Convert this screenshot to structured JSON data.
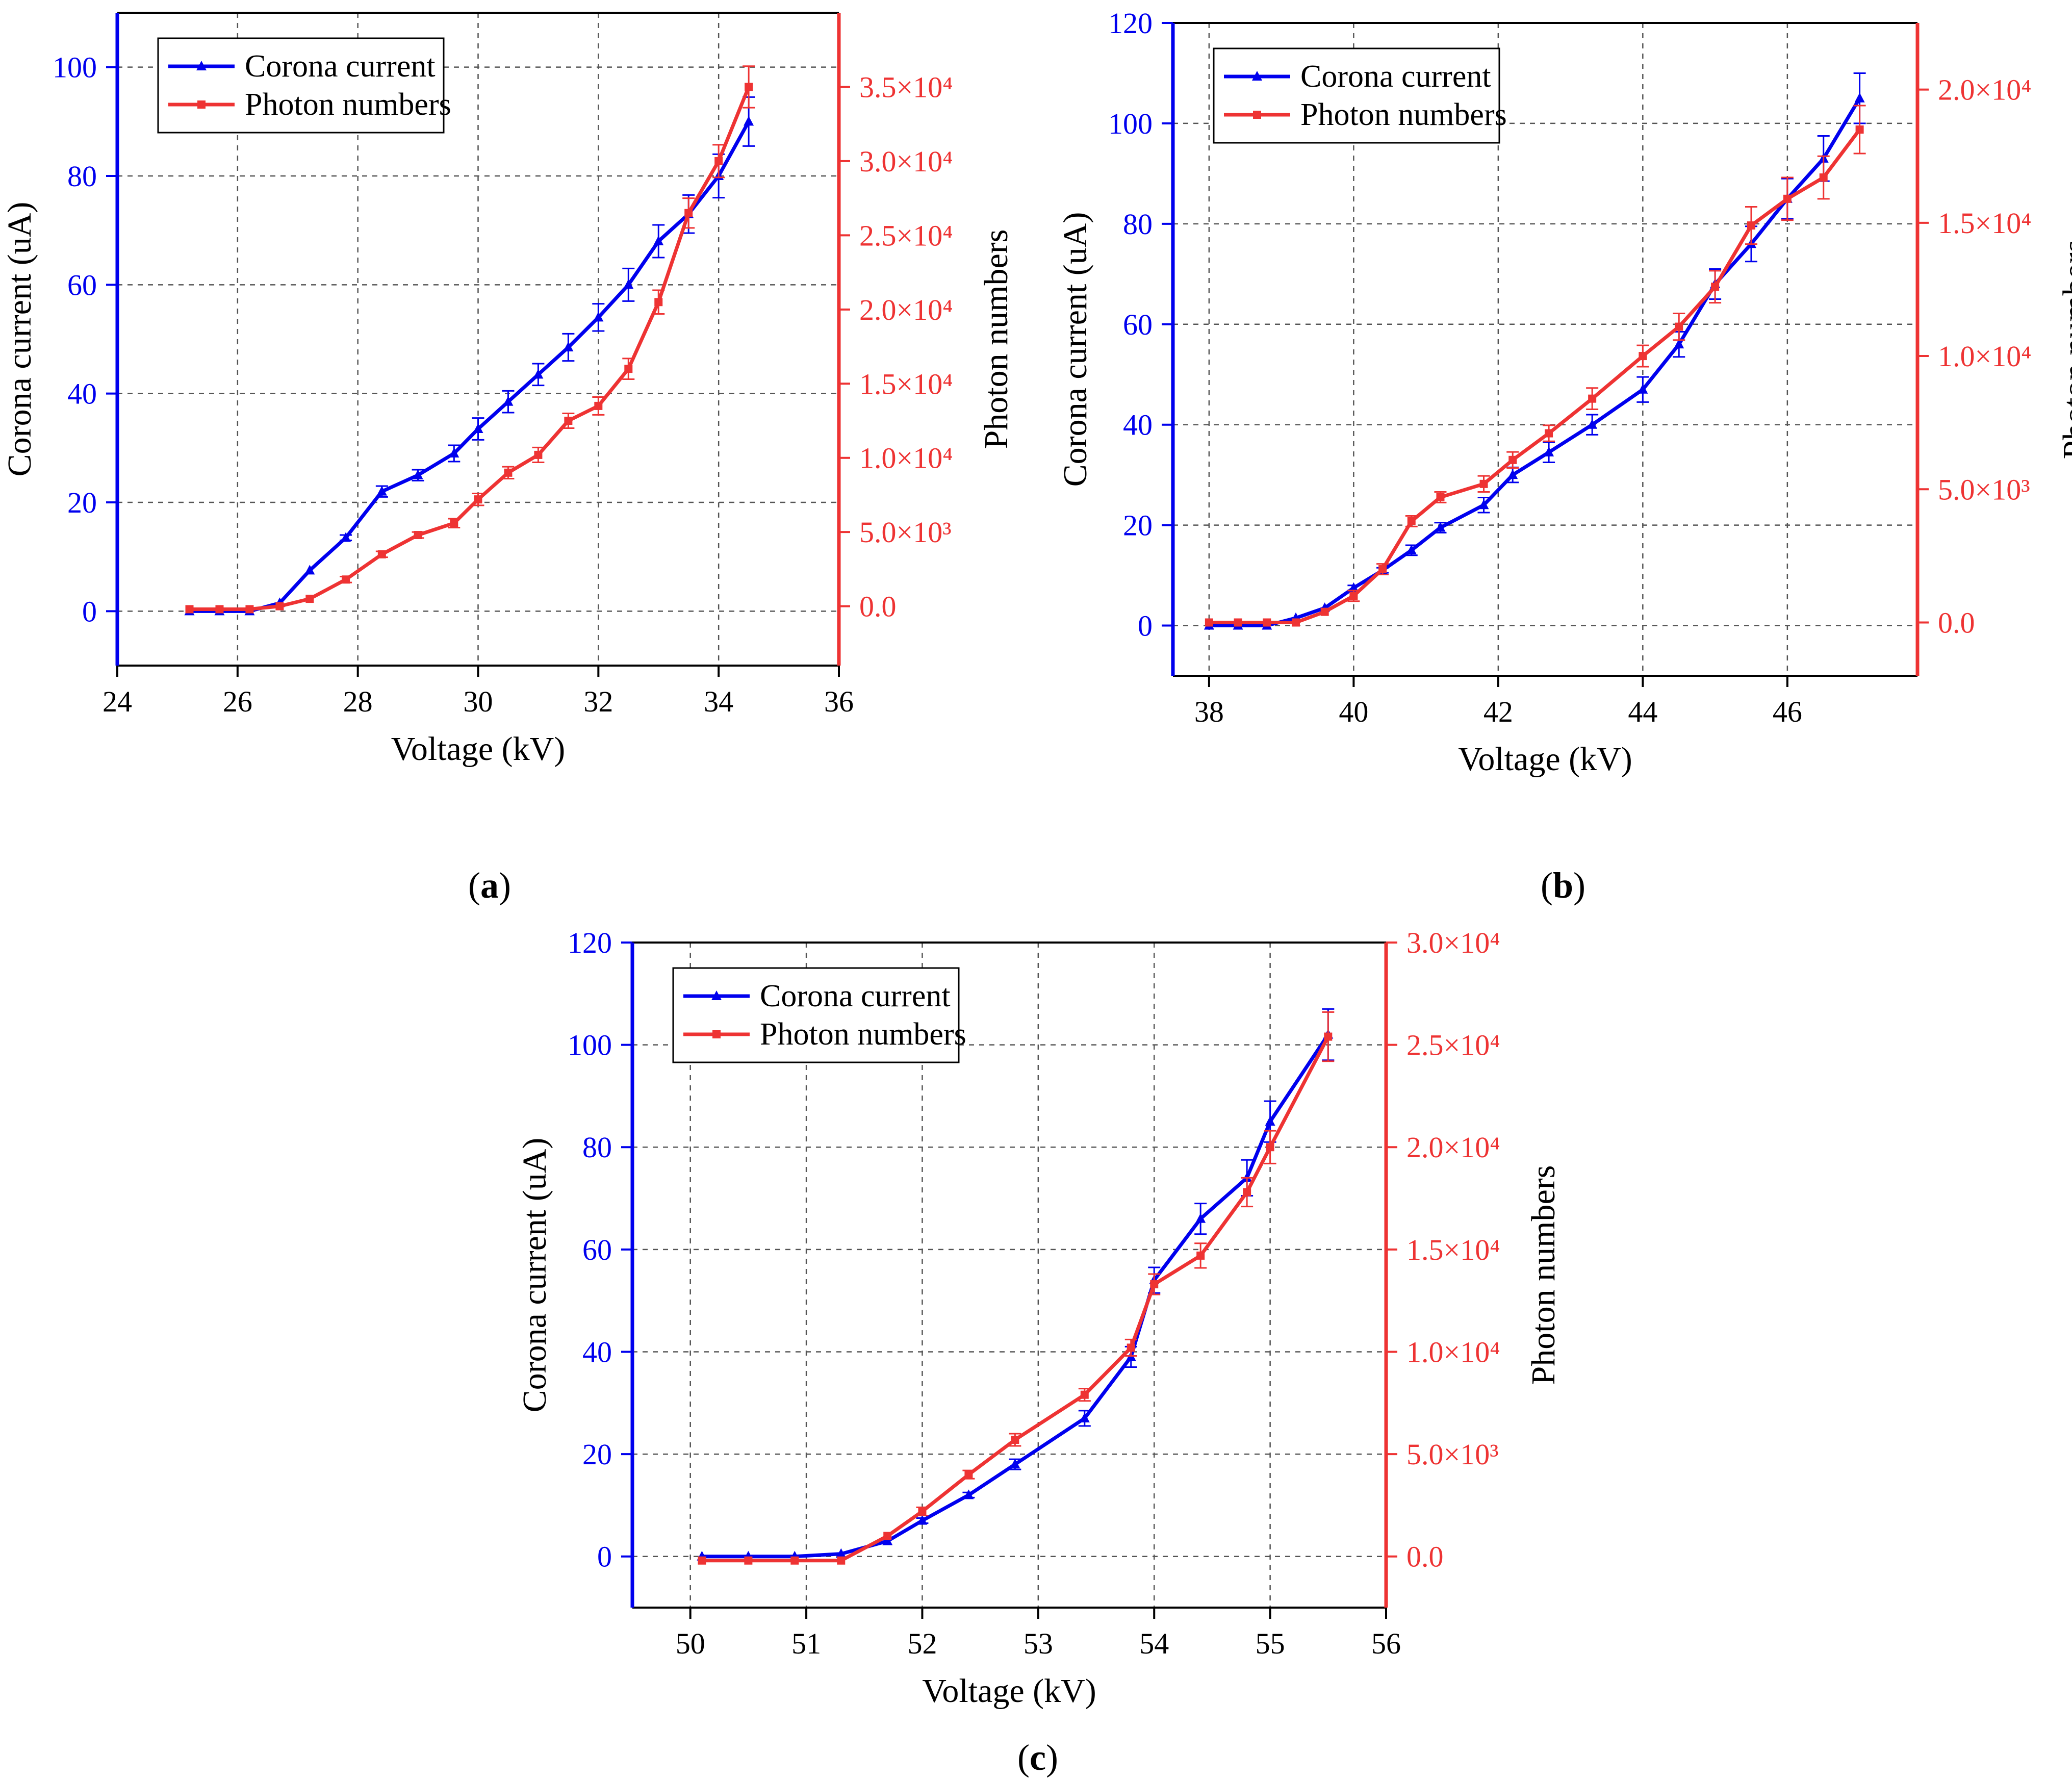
{
  "figure": {
    "panel_labels": [
      "(a)",
      "(b)",
      "(c)"
    ]
  },
  "chart_data": [
    {
      "type": "line",
      "panel": "(a)",
      "xlabel": "Voltage (kV)",
      "ylabel_left": "Corona current (uA)",
      "ylabel_right": "Photon numbers",
      "xlim": [
        24,
        36
      ],
      "ylim_left": [
        -10,
        110
      ],
      "ylim_right": [
        -4000,
        40000
      ],
      "x_ticks": [
        "24",
        "26",
        "28",
        "30",
        "32",
        "34",
        "36"
      ],
      "x_tick_values": [
        24,
        26,
        28,
        30,
        32,
        34,
        36
      ],
      "y_ticks_left": [
        "0",
        "20",
        "40",
        "60",
        "80",
        "100"
      ],
      "y_tick_values_left": [
        0,
        20,
        40,
        60,
        80,
        100
      ],
      "y_ticks_right": [
        "0.0",
        "5.0×10³",
        "1.0×10⁴",
        "1.5×10⁴",
        "2.0×10⁴",
        "2.5×10⁴",
        "3.0×10⁴",
        "3.5×10⁴"
      ],
      "y_tick_values_right": [
        0,
        5000,
        10000,
        15000,
        20000,
        25000,
        30000,
        35000
      ],
      "legend_position": "top-left",
      "series": [
        {
          "name": "Corona current",
          "axis": "left",
          "color": "#0000ee",
          "marker": "triangle",
          "x": [
            25.2,
            25.7,
            26.2,
            26.7,
            27.2,
            27.8,
            28.4,
            29.0,
            29.6,
            30.0,
            30.5,
            31.0,
            31.5,
            32.0,
            32.5,
            33.0,
            33.5,
            34.0,
            34.5
          ],
          "values": [
            0,
            0,
            0,
            1.5,
            7.5,
            13.5,
            22,
            25,
            29,
            33.5,
            38.5,
            43.5,
            48.5,
            54,
            60,
            68,
            73,
            80,
            90
          ],
          "errors": [
            0,
            0,
            0,
            0,
            0,
            0.5,
            1,
            1,
            1.5,
            2,
            2,
            2,
            2.5,
            2.5,
            3,
            3,
            3.5,
            4,
            4.5
          ]
        },
        {
          "name": "Photon numbers",
          "axis": "right",
          "color": "#ee3333",
          "marker": "square",
          "x": [
            25.2,
            25.7,
            26.2,
            26.7,
            27.2,
            27.8,
            28.4,
            29.0,
            29.6,
            30.0,
            30.5,
            31.0,
            31.5,
            32.0,
            32.5,
            33.0,
            33.5,
            34.0,
            34.5
          ],
          "values": [
            -200,
            -200,
            -200,
            0,
            500,
            1800,
            3500,
            4800,
            5600,
            7200,
            9000,
            10200,
            12500,
            13500,
            16000,
            20500,
            26500,
            30000,
            35000
          ],
          "errors": [
            0,
            0,
            0,
            0,
            0,
            200,
            200,
            200,
            300,
            400,
            400,
            500,
            500,
            600,
            700,
            800,
            1000,
            1100,
            1400
          ]
        }
      ]
    },
    {
      "type": "line",
      "panel": "(b)",
      "xlabel": "Voltage (kV)",
      "ylabel_left": "Corona current (uA)",
      "ylabel_right": "Photon numbers",
      "xlim": [
        37.5,
        47.8
      ],
      "ylim_left": [
        -10,
        120
      ],
      "ylim_right": [
        -2000,
        22500
      ],
      "x_ticks": [
        "38",
        "40",
        "42",
        "44",
        "46"
      ],
      "x_tick_values": [
        38,
        40,
        42,
        44,
        46
      ],
      "y_ticks_left": [
        "0",
        "20",
        "40",
        "60",
        "80",
        "100",
        "120"
      ],
      "y_tick_values_left": [
        0,
        20,
        40,
        60,
        80,
        100,
        120
      ],
      "y_ticks_right": [
        "0.0",
        "5.0×10³",
        "1.0×10⁴",
        "1.5×10⁴",
        "2.0×10⁴"
      ],
      "y_tick_values_right": [
        0,
        5000,
        10000,
        15000,
        20000
      ],
      "legend_position": "top-left",
      "series": [
        {
          "name": "Corona current",
          "axis": "left",
          "color": "#0000ee",
          "marker": "triangle",
          "x": [
            38.0,
            38.4,
            38.8,
            39.2,
            39.6,
            40.0,
            40.4,
            40.8,
            41.2,
            41.8,
            42.2,
            42.7,
            43.3,
            44.0,
            44.5,
            45.0,
            45.5,
            46.0,
            46.5,
            47.0
          ],
          "values": [
            0,
            0,
            0,
            1.5,
            3.5,
            7.5,
            11,
            15,
            19.5,
            24,
            30,
            34.5,
            40,
            47,
            56,
            68,
            76,
            85,
            93,
            105
          ],
          "errors": [
            0,
            0,
            0,
            0,
            0,
            0.5,
            0.5,
            1,
            1,
            1.5,
            1.5,
            2,
            2,
            2.5,
            2.5,
            3,
            3.5,
            4,
            4.5,
            5
          ]
        },
        {
          "name": "Photon numbers",
          "axis": "right",
          "color": "#ee3333",
          "marker": "square",
          "x": [
            38.0,
            38.4,
            38.8,
            39.2,
            39.6,
            40.0,
            40.4,
            40.8,
            41.2,
            41.8,
            42.2,
            42.7,
            43.3,
            44.0,
            44.5,
            45.0,
            45.5,
            46.0,
            46.5,
            47.0
          ],
          "values": [
            0,
            0,
            0,
            0,
            400,
            1000,
            2000,
            3800,
            4700,
            5200,
            6100,
            7100,
            8400,
            10000,
            11100,
            12600,
            14900,
            15900,
            16700,
            18500
          ],
          "errors": [
            0,
            0,
            0,
            0,
            0,
            200,
            200,
            200,
            200,
            300,
            300,
            300,
            400,
            400,
            500,
            600,
            700,
            800,
            800,
            900
          ]
        }
      ]
    },
    {
      "type": "line",
      "panel": "(c)",
      "xlabel": "Voltage (kV)",
      "ylabel_left": "Corona current (uA)",
      "ylabel_right": "Photon numbers",
      "xlim": [
        49.5,
        56
      ],
      "ylim_left": [
        -10,
        120
      ],
      "ylim_right": [
        -2500,
        30000
      ],
      "x_ticks": [
        "50",
        "51",
        "52",
        "53",
        "54",
        "55",
        "56"
      ],
      "x_tick_values": [
        50,
        51,
        52,
        53,
        54,
        55,
        56
      ],
      "y_ticks_left": [
        "0",
        "20",
        "40",
        "60",
        "80",
        "100",
        "120"
      ],
      "y_tick_values_left": [
        0,
        20,
        40,
        60,
        80,
        100,
        120
      ],
      "y_ticks_right": [
        "0.0",
        "5.0×10³",
        "1.0×10⁴",
        "1.5×10⁴",
        "2.0×10⁴",
        "2.5×10⁴",
        "3.0×10⁴"
      ],
      "y_tick_values_right": [
        0,
        5000,
        10000,
        15000,
        20000,
        25000,
        30000
      ],
      "legend_position": "top-left",
      "series": [
        {
          "name": "Corona current",
          "axis": "left",
          "color": "#0000ee",
          "marker": "triangle",
          "x": [
            50.1,
            50.5,
            50.9,
            51.3,
            51.7,
            52.0,
            52.4,
            52.8,
            53.4,
            53.8,
            54.0,
            54.4,
            54.8,
            55.0,
            55.5
          ],
          "values": [
            0,
            0,
            0,
            0.5,
            3,
            7,
            12,
            18,
            27,
            39,
            54,
            66,
            74,
            85,
            102
          ],
          "errors": [
            0,
            0,
            0,
            0,
            0,
            0.5,
            0.5,
            1,
            1.5,
            2,
            2.5,
            3,
            3.5,
            4,
            5
          ]
        },
        {
          "name": "Photon numbers",
          "axis": "right",
          "color": "#ee3333",
          "marker": "square",
          "x": [
            50.1,
            50.5,
            50.9,
            51.3,
            51.7,
            52.0,
            52.4,
            52.8,
            53.4,
            53.8,
            54.0,
            54.4,
            54.8,
            55.0,
            55.5
          ],
          "values": [
            -200,
            -200,
            -200,
            -200,
            1000,
            2200,
            4000,
            5700,
            7900,
            10200,
            13300,
            14700,
            17800,
            20000,
            25400
          ],
          "errors": [
            0,
            0,
            0,
            0,
            0,
            200,
            200,
            300,
            300,
            400,
            500,
            600,
            700,
            800,
            1200
          ]
        }
      ]
    }
  ]
}
